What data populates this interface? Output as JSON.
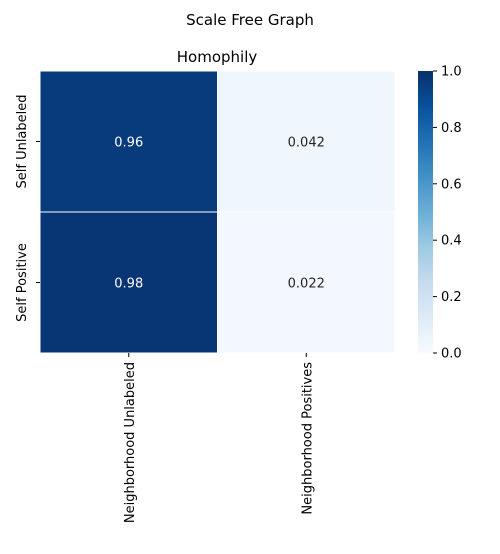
{
  "chart_data": {
    "type": "heatmap",
    "suptitle": "Scale Free Graph",
    "title": "Homophily",
    "rows": [
      "Self Unlabeled",
      "Self Positive"
    ],
    "columns": [
      "Neighborhood Unlabeled",
      "Neighborhood Positives"
    ],
    "values": [
      [
        0.96,
        0.042
      ],
      [
        0.98,
        0.022
      ]
    ],
    "value_labels": [
      [
        "0.96",
        "0.042"
      ],
      [
        "0.98",
        "0.022"
      ]
    ],
    "colormap": "Blues",
    "colorbar": {
      "range": [
        0.0,
        1.0
      ],
      "ticks": [
        0.0,
        0.2,
        0.4,
        0.6,
        0.8,
        1.0
      ],
      "tick_labels": [
        "0.0",
        "0.2",
        "0.4",
        "0.6",
        "0.8",
        "1.0"
      ]
    },
    "cell_separator_color": "#ffffff"
  }
}
